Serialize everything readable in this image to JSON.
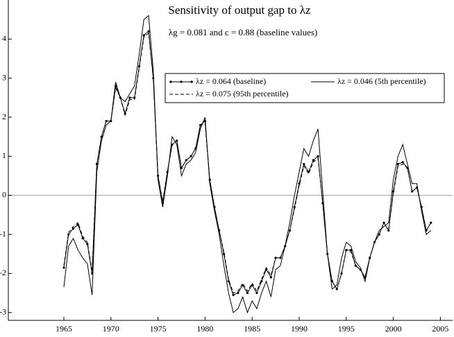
{
  "chart_data": {
    "type": "line",
    "title": "Sensitivity of output gap to λz",
    "subtitle": "λg = 0.081 and c = 0.88 (baseline values)",
    "x": [
      1965,
      1965.5,
      1966,
      1966.5,
      1967,
      1967.5,
      1968,
      1968.5,
      1969,
      1969.5,
      1970,
      1970.5,
      1971,
      1971.5,
      1972,
      1972.5,
      1973,
      1973.5,
      1974,
      1974.5,
      1975,
      1975.5,
      1976,
      1976.5,
      1977,
      1977.5,
      1978,
      1978.5,
      1979,
      1979.5,
      1980,
      1980.5,
      1981,
      1981.5,
      1982,
      1982.5,
      1983,
      1983.5,
      1984,
      1984.5,
      1985,
      1985.5,
      1986,
      1986.5,
      1987,
      1987.5,
      1988,
      1988.5,
      1989,
      1989.5,
      1990,
      1990.5,
      1991,
      1991.5,
      1992,
      1992.5,
      1993,
      1993.5,
      1994,
      1994.5,
      1995,
      1995.5,
      1996,
      1996.5,
      1997,
      1997.5,
      1998,
      1998.5,
      1999,
      1999.5,
      2000,
      2000.5,
      2001,
      2001.5,
      2002,
      2002.5,
      2003,
      2003.5,
      2004
    ],
    "series": [
      {
        "name": "λz = 0.064 (baseline)",
        "color": "#000000",
        "style": "marker",
        "values": [
          -1.85,
          -1.0,
          -0.85,
          -0.75,
          -1.1,
          -1.25,
          -2.0,
          0.8,
          1.5,
          1.9,
          1.9,
          2.8,
          2.5,
          2.1,
          2.5,
          2.5,
          3.3,
          4.1,
          4.2,
          3.0,
          0.5,
          -0.2,
          0.6,
          1.3,
          1.4,
          0.7,
          0.9,
          1.0,
          1.2,
          1.8,
          1.9,
          0.4,
          -0.3,
          -0.9,
          -1.5,
          -2.2,
          -2.55,
          -2.5,
          -2.3,
          -2.5,
          -2.3,
          -2.5,
          -2.2,
          -1.9,
          -2.1,
          -1.6,
          -1.6,
          -1.3,
          -0.9,
          -0.3,
          0.3,
          0.8,
          0.6,
          0.9,
          1.0,
          -0.2,
          -1.5,
          -2.2,
          -2.4,
          -2.0,
          -1.4,
          -1.4,
          -1.8,
          -1.9,
          -2.1,
          -1.6,
          -1.2,
          -1.0,
          -0.7,
          -0.9,
          0.1,
          0.8,
          0.85,
          0.7,
          0.1,
          0.2,
          -0.3,
          -0.9,
          -0.7
        ]
      },
      {
        "name": "λz = 0.046 (5th percentile)",
        "color": "#000000",
        "style": "solid",
        "values": [
          -2.35,
          -1.3,
          -1.1,
          -1.4,
          -1.6,
          -1.75,
          -2.55,
          0.6,
          1.4,
          1.8,
          1.9,
          2.9,
          2.5,
          2.4,
          2.6,
          2.8,
          3.6,
          4.5,
          4.6,
          3.2,
          0.4,
          -0.3,
          0.5,
          1.5,
          1.3,
          0.5,
          0.8,
          0.9,
          1.1,
          1.7,
          2.0,
          0.3,
          -0.4,
          -1.0,
          -1.8,
          -2.5,
          -3.0,
          -2.9,
          -2.6,
          -3.0,
          -2.7,
          -2.9,
          -2.5,
          -2.2,
          -2.6,
          -1.9,
          -1.8,
          -1.3,
          -0.7,
          0.0,
          0.6,
          1.2,
          1.0,
          1.4,
          1.7,
          0.1,
          -1.5,
          -2.4,
          -2.3,
          -1.6,
          -1.2,
          -1.3,
          -1.7,
          -1.85,
          -2.2,
          -1.6,
          -1.2,
          -0.9,
          -0.8,
          -0.7,
          0.4,
          1.0,
          1.3,
          0.8,
          0.3,
          0.3,
          -0.4,
          -1.0,
          -0.9
        ]
      },
      {
        "name": "λz = 0.075 (95th percentile)",
        "color": "#000000",
        "style": "dashed",
        "values": [
          -1.8,
          -0.95,
          -0.8,
          -0.7,
          -1.05,
          -1.2,
          -1.95,
          0.8,
          1.5,
          1.9,
          1.9,
          2.75,
          2.5,
          2.05,
          2.45,
          2.45,
          3.25,
          4.05,
          4.15,
          3.0,
          0.5,
          -0.15,
          0.6,
          1.3,
          1.4,
          0.7,
          0.9,
          1.0,
          1.2,
          1.8,
          1.85,
          0.4,
          -0.3,
          -0.9,
          -1.45,
          -2.15,
          -2.5,
          -2.45,
          -2.25,
          -2.45,
          -2.25,
          -2.45,
          -2.15,
          -1.85,
          -2.05,
          -1.6,
          -1.6,
          -1.3,
          -0.9,
          -0.35,
          0.25,
          0.75,
          0.55,
          0.85,
          0.95,
          -0.2,
          -1.5,
          -2.2,
          -2.4,
          -2.0,
          -1.4,
          -1.45,
          -1.8,
          -1.9,
          -2.1,
          -1.6,
          -1.2,
          -1.0,
          -0.7,
          -0.9,
          0.05,
          0.75,
          0.8,
          0.7,
          0.1,
          0.2,
          -0.3,
          -0.9,
          -0.7
        ]
      }
    ],
    "xlim": [
      1959.1,
      2006.3
    ],
    "ylim": [
      -3.2,
      5.0
    ],
    "xticks": [
      1965,
      1970,
      1975,
      1980,
      1985,
      1990,
      1995,
      2000,
      2005
    ],
    "yticks": [
      -3,
      -2,
      -1,
      0,
      1,
      2,
      3,
      4
    ],
    "zero_line": true,
    "legend": "upper right"
  }
}
